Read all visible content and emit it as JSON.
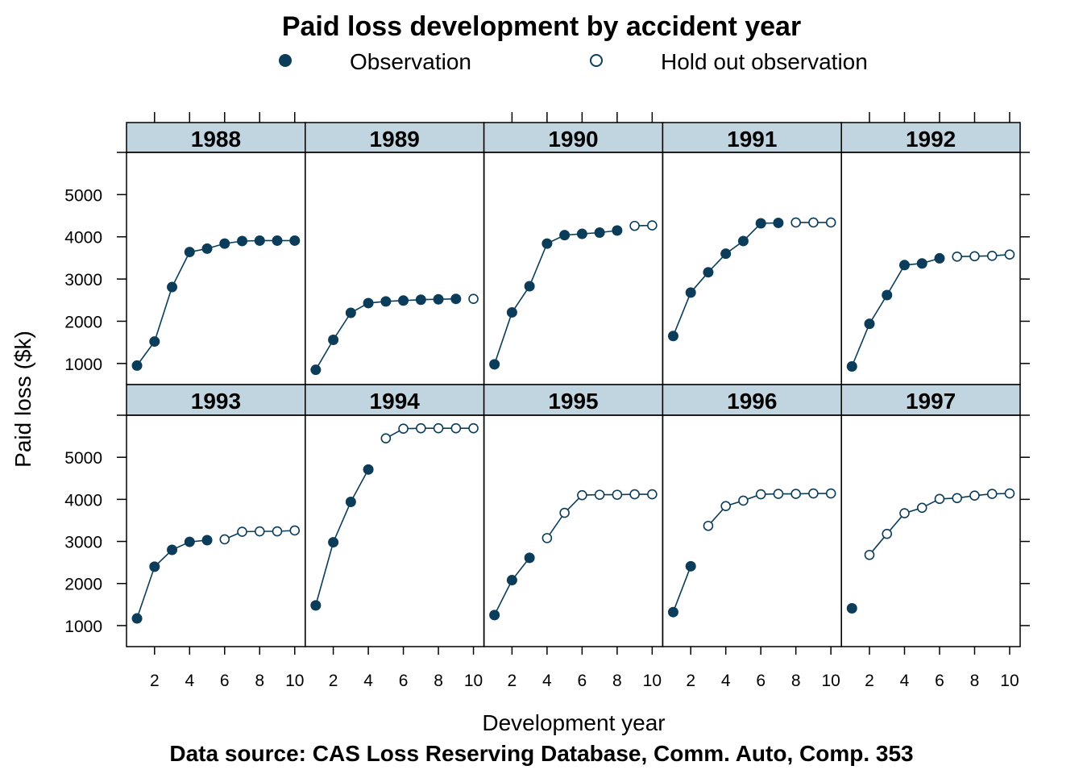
{
  "chart_data": {
    "type": "scatter",
    "title": "Paid loss development by accident year",
    "xlabel": "Development year",
    "ylabel": "Paid loss ($k)",
    "caption": "Data source: CAS Loss Reserving Database, Comm. Auto, Comp. 353",
    "legend": {
      "placement": "top",
      "entries": [
        {
          "label": "Observation",
          "marker": "filled-circle"
        },
        {
          "label": "Hold out observation",
          "marker": "open-circle"
        }
      ]
    },
    "colors": {
      "point": "#0b3d5a",
      "strip": "#c1d5e1"
    },
    "xlim": [
      0.4,
      10.6
    ],
    "ylim": [
      500,
      6000
    ],
    "x_ticks": [
      2,
      4,
      6,
      8,
      10
    ],
    "y_ticks": [
      1000,
      2000,
      3000,
      4000,
      5000
    ],
    "layout": {
      "columns": 5,
      "rows": 2
    },
    "panels": [
      {
        "label": "1988",
        "observed": [
          950,
          1520,
          2810,
          3640,
          3720,
          3840,
          3900,
          3910,
          3910,
          3910
        ],
        "holdout": []
      },
      {
        "label": "1989",
        "observed": [
          850,
          1560,
          2200,
          2430,
          2470,
          2490,
          2510,
          2520,
          2530
        ],
        "holdout": [
          2530
        ]
      },
      {
        "label": "1990",
        "observed": [
          980,
          2210,
          2830,
          3840,
          4040,
          4070,
          4100,
          4150
        ],
        "holdout": [
          4260,
          4270
        ]
      },
      {
        "label": "1991",
        "observed": [
          1650,
          2680,
          3160,
          3600,
          3900,
          4320,
          4330
        ],
        "holdout": [
          4340,
          4340,
          4340
        ]
      },
      {
        "label": "1992",
        "observed": [
          930,
          1940,
          2620,
          3330,
          3370,
          3490
        ],
        "holdout": [
          3530,
          3540,
          3550,
          3580
        ]
      },
      {
        "label": "1993",
        "observed": [
          1170,
          2400,
          2800,
          2990,
          3030
        ],
        "holdout": [
          3050,
          3230,
          3240,
          3240,
          3260
        ]
      },
      {
        "label": "1994",
        "observed": [
          1480,
          2980,
          3940,
          4710
        ],
        "holdout": [
          5450,
          5680,
          5690,
          5690,
          5690,
          5690
        ]
      },
      {
        "label": "1995",
        "observed": [
          1250,
          2080,
          2610
        ],
        "holdout": [
          3080,
          3680,
          4100,
          4110,
          4110,
          4120,
          4120
        ]
      },
      {
        "label": "1996",
        "observed": [
          1320,
          2410
        ],
        "holdout": [
          3370,
          3840,
          3970,
          4120,
          4130,
          4130,
          4140,
          4140
        ]
      },
      {
        "label": "1997",
        "observed": [
          1410
        ],
        "holdout": [
          2680,
          3180,
          3670,
          3800,
          4010,
          4030,
          4090,
          4130,
          4140
        ]
      }
    ]
  }
}
